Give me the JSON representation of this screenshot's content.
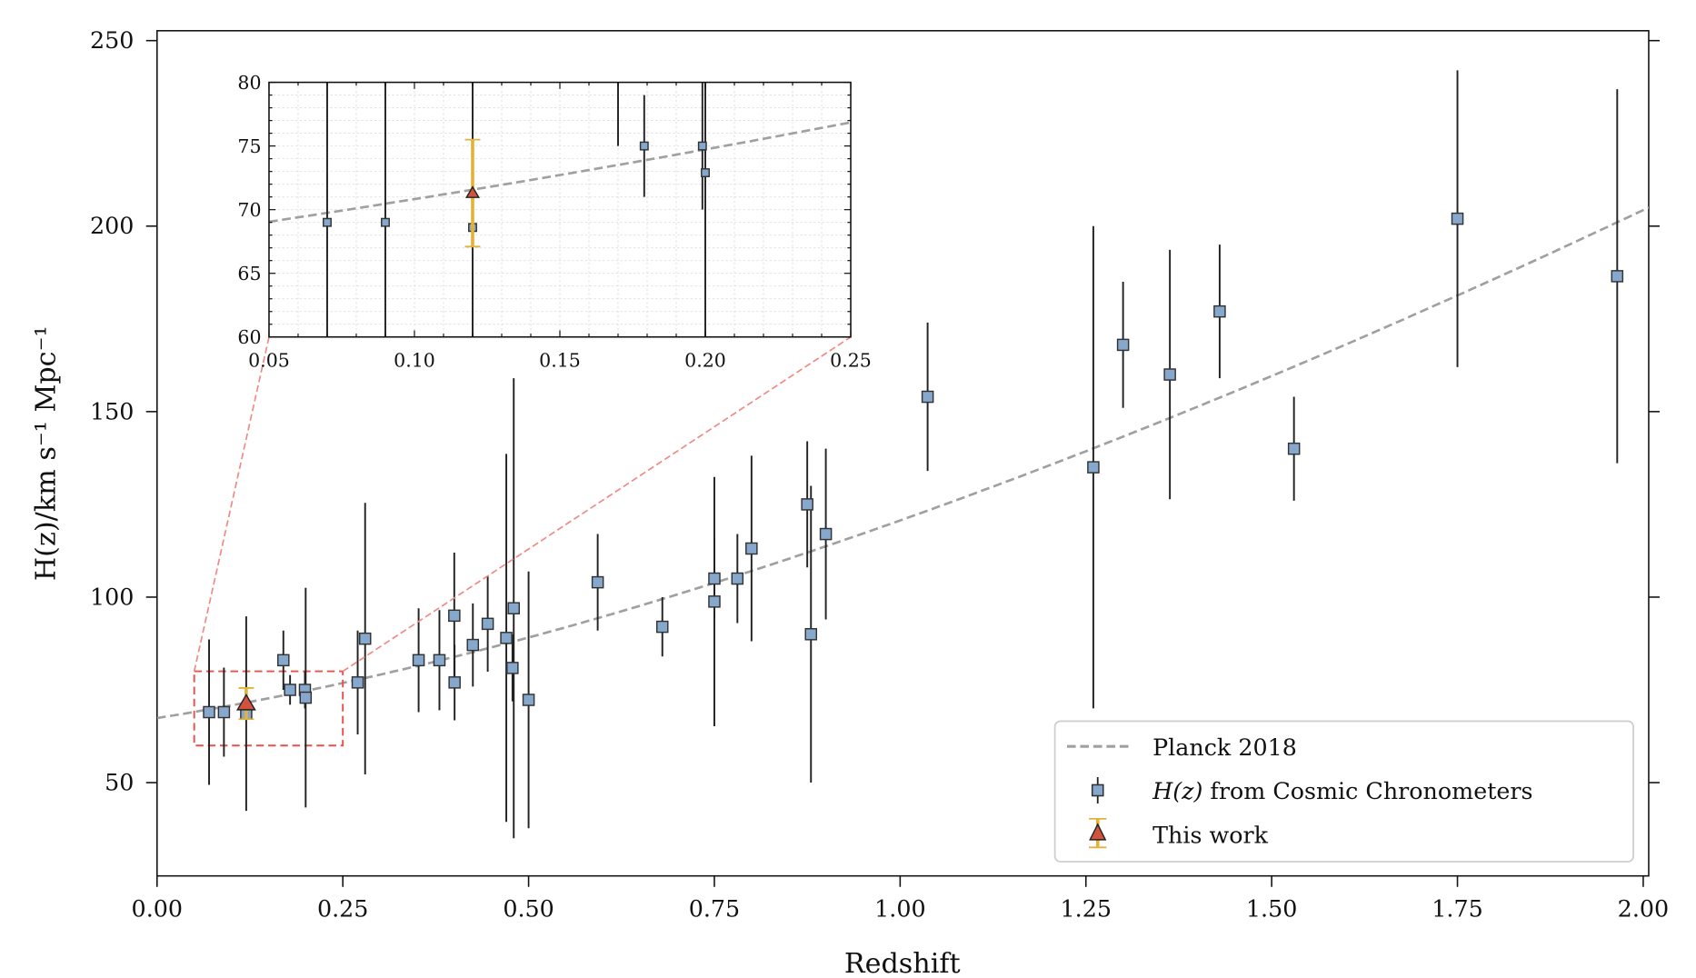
{
  "chart_data": {
    "type": "scatter",
    "title": "",
    "xlabel": "Redshift",
    "ylabel": "H(z)/km s⁻¹ Mpc⁻¹",
    "xlim": [
      0,
      2.01
    ],
    "ylim": [
      25,
      252.5
    ],
    "xticks": [
      "0.00",
      "0.25",
      "0.50",
      "0.75",
      "1.00",
      "1.25",
      "1.50",
      "1.75",
      "2.00"
    ],
    "yticks": [
      "50",
      "100",
      "150",
      "200",
      "250"
    ],
    "grid": false,
    "legend_position": "bottom-right",
    "legend": {
      "planck": "Planck 2018",
      "cc_italic": "H(z)",
      "cc_rest": " from Cosmic Chronometers",
      "this_work": "This work"
    },
    "colors": {
      "cc_fill": "#86a8cc",
      "errorbar": "#222222",
      "planck": "#a0a0a0",
      "this_work_fill": "#d1533e",
      "this_work_err": "#e2b23a",
      "zoom_box": "#e8504a",
      "connector": "#f08a85"
    },
    "planck_model": {
      "H0": 67.4,
      "Om": 0.315
    },
    "series": [
      {
        "name": "H(z) from Cosmic Chronometers",
        "z": [
          0.07,
          0.09,
          0.12,
          0.17,
          0.179,
          0.199,
          0.2,
          0.27,
          0.28,
          0.352,
          0.38,
          0.4,
          0.4004,
          0.425,
          0.445,
          0.47,
          0.4783,
          0.48,
          0.5,
          0.593,
          0.68,
          0.75,
          0.75,
          0.781,
          0.8,
          0.875,
          0.88,
          0.9,
          1.037,
          1.26,
          1.3,
          1.363,
          1.43,
          1.53,
          1.75,
          1.965
        ],
        "H": [
          69,
          69,
          68.6,
          83,
          75,
          75,
          72.9,
          77,
          88.8,
          83,
          83,
          95,
          77,
          87.1,
          92.8,
          89,
          80.9,
          97,
          72.3,
          104,
          92,
          98.8,
          105,
          105,
          113.1,
          125,
          90,
          117,
          154,
          135,
          168,
          160,
          177,
          140,
          202,
          186.5
        ],
        "err": [
          19.6,
          12,
          26.2,
          8,
          4,
          5,
          29.6,
          14,
          36.6,
          14,
          13.5,
          17,
          10.2,
          11.2,
          12.9,
          49.6,
          9,
          62,
          34.6,
          13,
          8,
          33.6,
          10.8,
          12,
          25,
          17,
          40,
          23,
          20,
          65,
          17,
          33.6,
          18,
          14,
          40,
          50.4
        ]
      },
      {
        "name": "This work",
        "z": [
          0.12
        ],
        "H": [
          71.3
        ],
        "err": [
          4.2
        ]
      }
    ],
    "inset": {
      "xlim": [
        0.05,
        0.25
      ],
      "ylim": [
        60,
        80
      ],
      "xticks": [
        "0.05",
        "0.10",
        "0.15",
        "0.20",
        "0.25"
      ],
      "yticks": [
        "60",
        "65",
        "70",
        "75",
        "80"
      ],
      "grid": "minor dotted"
    }
  }
}
